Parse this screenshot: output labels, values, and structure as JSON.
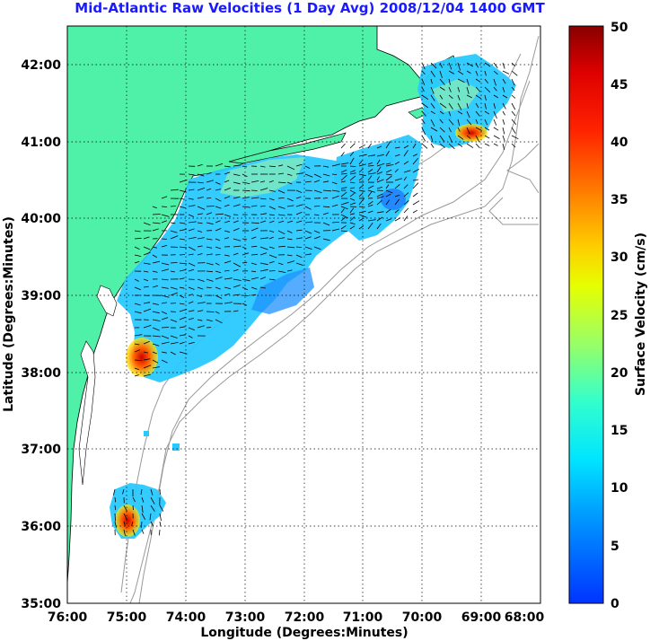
{
  "title": "Mid-Atlantic Raw Velocities (1 Day Avg) 2008/12/04 1400 GMT",
  "xlabel": "Longitude (Degrees:Minutes)",
  "ylabel": "Latitude (Degrees:Minutes)",
  "colorbar": {
    "label": "Surface Velocity (cm/s)",
    "min": 0,
    "max": 50,
    "ticks": [
      "0",
      "5",
      "10",
      "15",
      "20",
      "25",
      "30",
      "35",
      "40",
      "45",
      "50"
    ]
  },
  "x_ticks": [
    "76:00",
    "75:00",
    "74:00",
    "73:00",
    "72:00",
    "71:00",
    "70:00",
    "69:00",
    "68:00"
  ],
  "y_ticks": [
    "35:00",
    "36:00",
    "37:00",
    "38:00",
    "39:00",
    "40:00",
    "41:00",
    "42:00"
  ],
  "colors": {
    "land": "#4ff0a8",
    "title": "#1a1aff",
    "bathymetry": "#999999",
    "grid": "#000000"
  }
}
